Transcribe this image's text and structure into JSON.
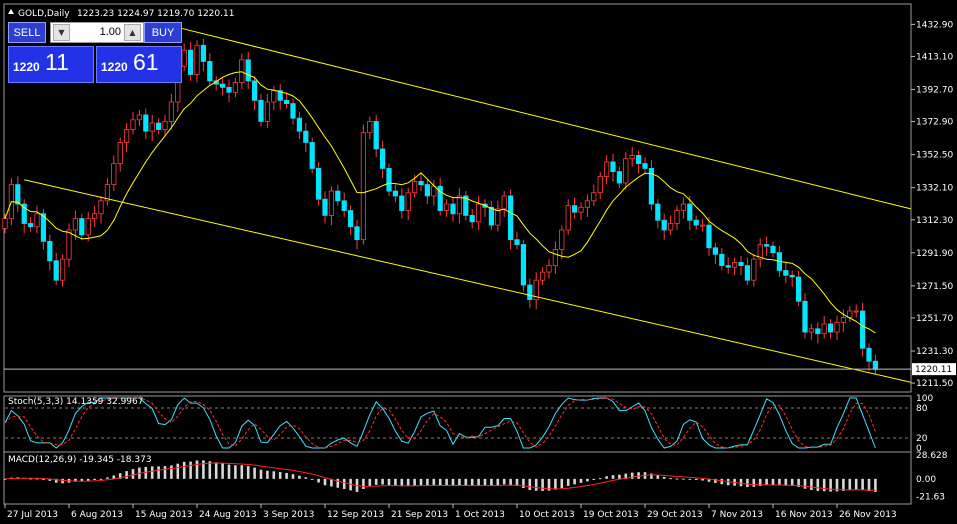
{
  "header": {
    "symbol": "GOLD,Daily",
    "ohlc": "1223.23 1224.97 1219.70 1220.11"
  },
  "trade_panel": {
    "sell_label": "SELL",
    "buy_label": "BUY",
    "lot": "1.00",
    "bid_prefix": "1220",
    "bid_big": "11",
    "ask_prefix": "1220",
    "ask_big": "61"
  },
  "colors": {
    "up": "#000000",
    "down": "#00e5ff",
    "wick": "#ff3b3b",
    "channel": "#ffff00",
    "ma": "#ffff00",
    "axis_text": "#ffffff",
    "macd_signal": "#ff2222",
    "stoch_main": "#40e0ff",
    "stoch_signal": "#ff3030",
    "hist": "#d8d8d8"
  },
  "chart_data": [
    {
      "type": "candlestick",
      "title": "GOLD,Daily",
      "ylim": [
        1206,
        1443
      ],
      "y_ticks": [
        1432.9,
        1413.1,
        1392.7,
        1372.9,
        1352.5,
        1332.1,
        1312.3,
        1291.9,
        1271.5,
        1251.7,
        1231.3,
        1211.5
      ],
      "y_tick_labels": [
        "1432.90",
        "1413.10",
        "1392.70",
        "1372.90",
        "1352.50",
        "1332.10",
        "1312.30",
        "1291.90",
        "1271.50",
        "1251.70",
        "1231.30",
        "1211.50"
      ],
      "current_price": 1220.11,
      "current_price_label": "1220.11",
      "x_tick_labels": [
        "27 Jul 2013",
        "6 Aug 2013",
        "15 Aug 2013",
        "24 Aug 2013",
        "3 Sep 2013",
        "12 Sep 2013",
        "21 Sep 2013",
        "1 Oct 2013",
        "10 Oct 2013",
        "19 Oct 2013",
        "29 Oct 2013",
        "7 Nov 2013",
        "16 Nov 2013",
        "26 Nov 2013"
      ],
      "x_tick_index": [
        0,
        10,
        20,
        30,
        40,
        50,
        60,
        70,
        80,
        90,
        100,
        110,
        120,
        130
      ],
      "closes": [
        1313,
        1334,
        1322,
        1310,
        1308,
        1316,
        1299,
        1287,
        1275,
        1288,
        1306,
        1313,
        1303,
        1313,
        1316,
        1324,
        1334,
        1347,
        1360,
        1368,
        1374,
        1377,
        1367,
        1372,
        1368,
        1373,
        1385,
        1407,
        1417,
        1402,
        1420,
        1410,
        1398,
        1396,
        1394,
        1391,
        1397,
        1411,
        1398,
        1386,
        1373,
        1385,
        1392,
        1386,
        1384,
        1375,
        1367,
        1360,
        1344,
        1325,
        1315,
        1330,
        1324,
        1318,
        1308,
        1300,
        1366,
        1373,
        1356,
        1344,
        1330,
        1327,
        1318,
        1329,
        1336,
        1334,
        1327,
        1333,
        1318,
        1322,
        1316,
        1327,
        1315,
        1311,
        1322,
        1320,
        1309,
        1319,
        1327,
        1300,
        1297,
        1272,
        1263,
        1275,
        1280,
        1284,
        1294,
        1306,
        1321,
        1317,
        1320,
        1324,
        1329,
        1339,
        1348,
        1342,
        1335,
        1350,
        1352,
        1347,
        1344,
        1322,
        1312,
        1306,
        1310,
        1318,
        1322,
        1312,
        1309,
        1309,
        1295,
        1291,
        1284,
        1283,
        1286,
        1284,
        1275,
        1288,
        1297,
        1296,
        1292,
        1281,
        1278,
        1277,
        1262,
        1243,
        1245,
        1242,
        1248,
        1243,
        1249,
        1252,
        1256,
        1256,
        1233,
        1225,
        1220
      ],
      "channel_upper": {
        "x": [
          27,
          137
        ],
        "y": [
          1431,
          1319
        ]
      },
      "channel_lower": {
        "x": [
          3,
          137
        ],
        "y": [
          1337,
          1212
        ]
      },
      "indicators": {
        "stoch_label": "Stoch(5,3,3) 14.1359 32.9967",
        "stoch_levels": [
          80,
          20
        ],
        "stoch_level_labels": [
          "100",
          "80",
          "20",
          "0"
        ],
        "macd_label": "MACD(12,26,9) -19.345 -18.373",
        "macd_ylim": [
          -28,
          30
        ],
        "macd_tick_labels": [
          "28.628",
          "0.00",
          "-21.63"
        ],
        "macd_ticks": [
          28.628,
          0,
          -21.63
        ]
      }
    }
  ]
}
